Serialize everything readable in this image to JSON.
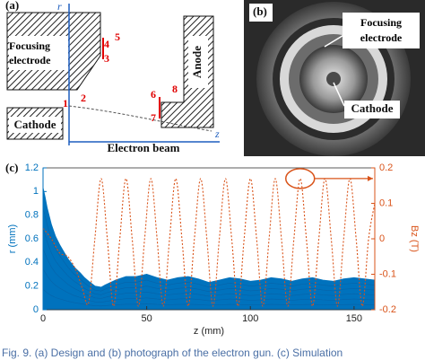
{
  "panel_a": {
    "label": "(a)",
    "axis_r": "r",
    "axis_z": "z",
    "focusing_electrode": "Focusing electrode",
    "anode": "Anode",
    "cathode": "Cathode",
    "beam": "Electron beam",
    "points": [
      "1",
      "2",
      "3",
      "4",
      "5",
      "6",
      "7",
      "8"
    ]
  },
  "panel_b": {
    "label": "(b)",
    "focusing_electrode": "Focusing electrode",
    "cathode": "Cathode"
  },
  "chart_data": {
    "type": "line",
    "panel_label": "(c)",
    "xlabel": "z (mm)",
    "ylabel": "r (mm)",
    "y2label": "Bz (T)",
    "xlim": [
      0,
      160
    ],
    "xticks": [
      0,
      50,
      100,
      150
    ],
    "ylim": [
      0,
      1.2
    ],
    "yticks": [
      0,
      0.2,
      0.4,
      0.6,
      0.8,
      1,
      1.2
    ],
    "y2lim": [
      -0.2,
      0.2
    ],
    "y2ticks": [
      -0.2,
      -0.1,
      0,
      0.1,
      0.2
    ],
    "series": [
      {
        "color": "#0072bd",
        "fill": true,
        "x": [
          0,
          1,
          2,
          4,
          6,
          8,
          10,
          12,
          15,
          18,
          20,
          22,
          25,
          28,
          30,
          35,
          40,
          45,
          50,
          55,
          60,
          65,
          70,
          75,
          80,
          85,
          90,
          95,
          100,
          105,
          110,
          115,
          120,
          125,
          130,
          135,
          140,
          145,
          150,
          155,
          160
        ],
        "values": [
          1.03,
          0.95,
          0.86,
          0.72,
          0.62,
          0.55,
          0.49,
          0.43,
          0.36,
          0.31,
          0.27,
          0.24,
          0.2,
          0.19,
          0.21,
          0.25,
          0.28,
          0.28,
          0.3,
          0.27,
          0.25,
          0.27,
          0.28,
          0.26,
          0.23,
          0.25,
          0.27,
          0.26,
          0.24,
          0.25,
          0.27,
          0.26,
          0.24,
          0.26,
          0.27,
          0.25,
          0.24,
          0.26,
          0.27,
          0.26,
          0.25
        ]
      },
      {
        "color": "#d95319",
        "dashed": true,
        "axis": "y2",
        "x": [
          0,
          4,
          8,
          12,
          16,
          19,
          22,
          25,
          28,
          31,
          34,
          37,
          40,
          43,
          46,
          49,
          52,
          55,
          58,
          61,
          64,
          67,
          70,
          73,
          76,
          79,
          82,
          85,
          88,
          91,
          94,
          97,
          100,
          103,
          106,
          109,
          112,
          115,
          118,
          121,
          124,
          127,
          130,
          133,
          136,
          139,
          142,
          145,
          148,
          151,
          154,
          157,
          160
        ],
        "values": [
          0.03,
          0,
          -0.04,
          -0.05,
          -0.09,
          -0.14,
          -0.18,
          0,
          0.17,
          0,
          -0.19,
          0,
          0.17,
          0,
          -0.19,
          0,
          0.17,
          0,
          -0.19,
          0,
          0.17,
          0,
          -0.19,
          0,
          0.17,
          0,
          -0.19,
          0,
          0.17,
          0,
          -0.19,
          0,
          0.17,
          0,
          -0.19,
          0,
          0.17,
          0,
          -0.19,
          0,
          0.17,
          0,
          -0.19,
          0,
          0.17,
          0,
          -0.19,
          0,
          0.17,
          0,
          -0.19,
          0,
          0.1
        ]
      }
    ]
  },
  "caption": "Fig. 9.  (a) Design and (b) photograph of the electron gun. (c) Simulation"
}
